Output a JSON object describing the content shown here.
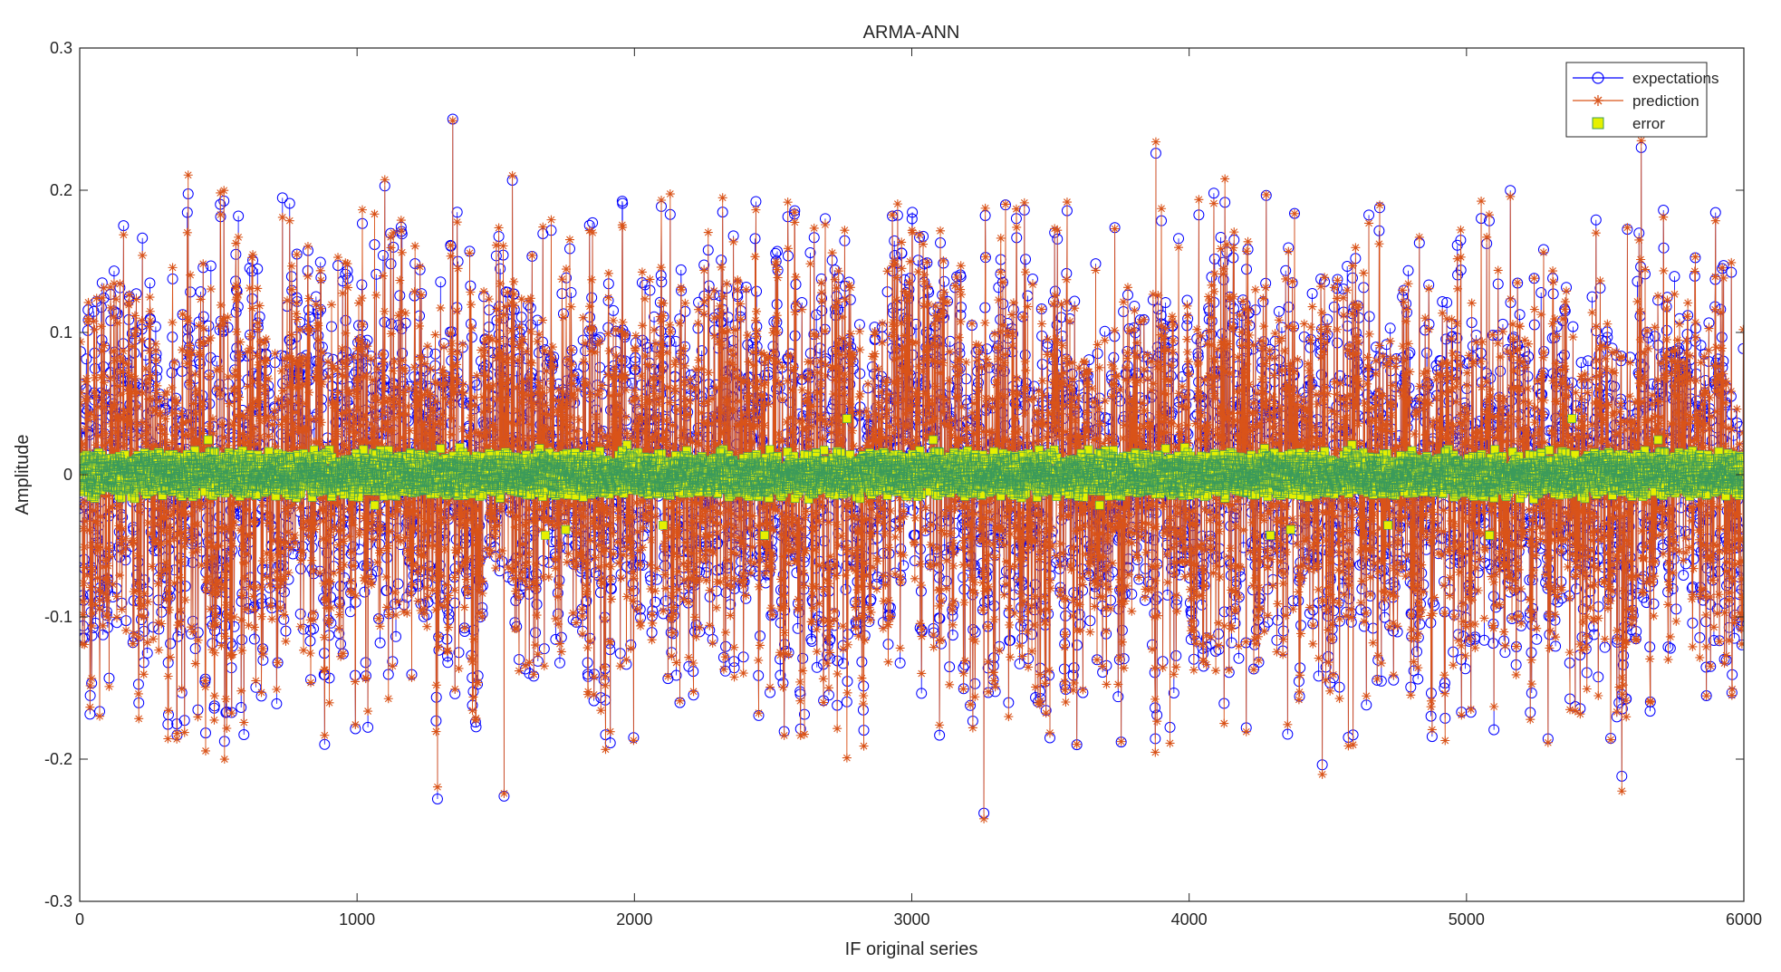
{
  "chart_data": {
    "type": "line",
    "title": "ARMA-ANN",
    "xlabel": "IF original series",
    "ylabel": "Amplitude",
    "xlim": [
      0,
      6000
    ],
    "ylim": [
      -0.3,
      0.3
    ],
    "xticks": [
      0,
      1000,
      2000,
      3000,
      4000,
      5000,
      6000
    ],
    "xtick_labels": [
      "0",
      "1000",
      "2000",
      "3000",
      "4000",
      "5000",
      "6000"
    ],
    "yticks": [
      -0.3,
      -0.2,
      -0.1,
      0,
      0.1,
      0.2,
      0.3
    ],
    "ytick_labels": [
      "-0.3",
      "-0.2",
      "-0.1",
      "0",
      "0.1",
      "0.2",
      "0.3"
    ],
    "grid": false,
    "legend_position": "top-right",
    "series": [
      {
        "name": "expectations",
        "color": "#0000ff",
        "marker": "circle",
        "line": true
      },
      {
        "name": "prediction",
        "color": "#d95319",
        "marker": "asterisk",
        "line": true
      },
      {
        "name": "error",
        "color": "#e6f000",
        "marker": "square",
        "line": false
      }
    ],
    "generation": {
      "n_points": 6000,
      "sigma": 0.07,
      "extremes": [
        {
          "x": 1345,
          "y": 0.25
        },
        {
          "x": 1290,
          "y": -0.228
        },
        {
          "x": 1530,
          "y": -0.226
        },
        {
          "x": 3260,
          "y": -0.238
        },
        {
          "x": 3880,
          "y": 0.226
        },
        {
          "x": 5630,
          "y": 0.23
        },
        {
          "x": 5560,
          "y": -0.212
        },
        {
          "x": 1100,
          "y": 0.203
        },
        {
          "x": 1560,
          "y": 0.207
        },
        {
          "x": 4480,
          "y": -0.204
        }
      ]
    }
  }
}
